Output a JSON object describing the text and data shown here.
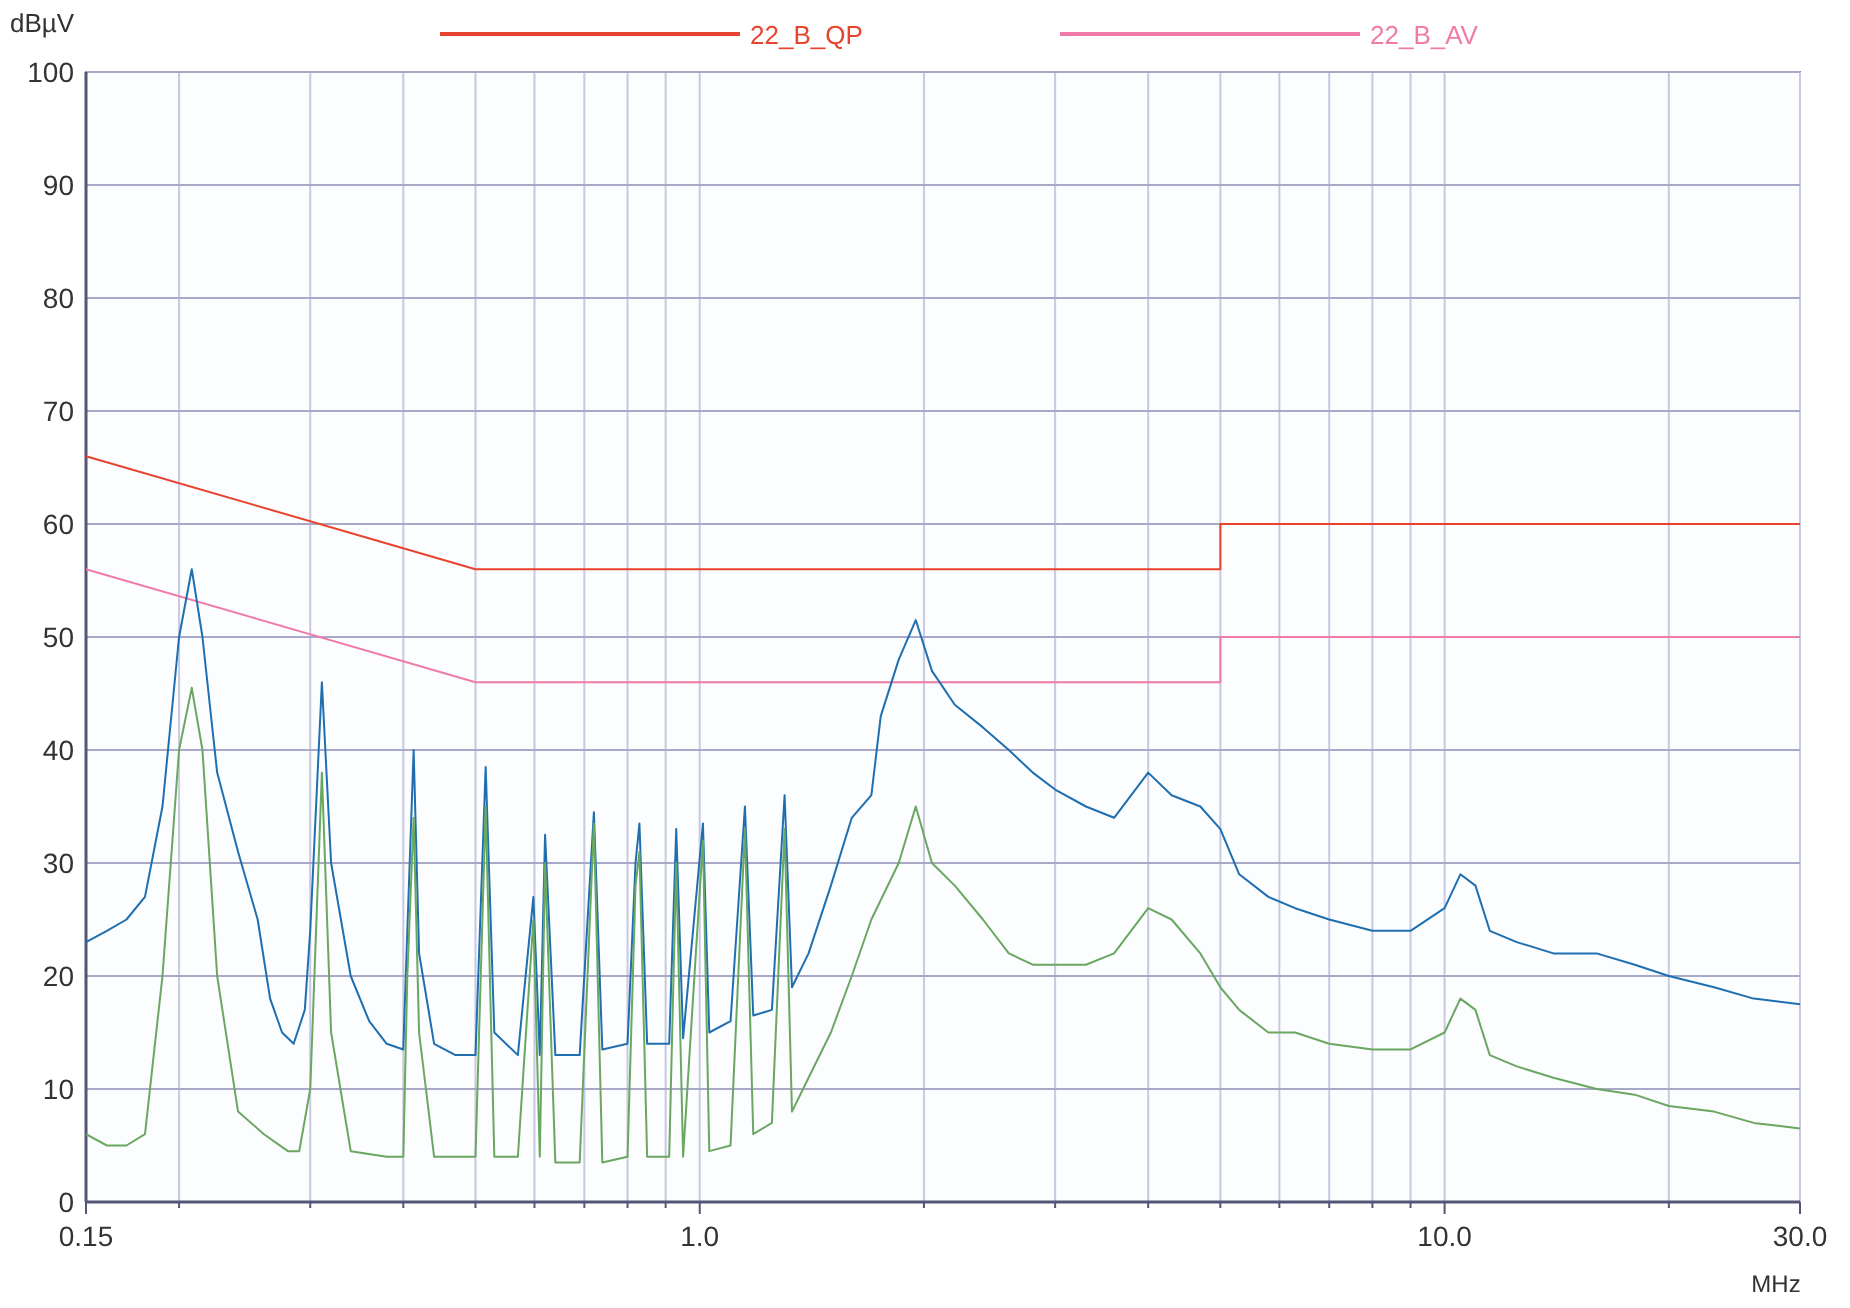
{
  "chart_data": {
    "type": "line",
    "xlabel": "MHz",
    "ylabel": "dBµV",
    "log": "x",
    "xlim": [
      0.15,
      30
    ],
    "ylim": [
      0,
      100
    ],
    "xticks": [
      {
        "value": 0.15,
        "label": "0.15"
      },
      {
        "value": 0.2,
        "label": null
      },
      {
        "value": 0.3,
        "label": null
      },
      {
        "value": 0.4,
        "label": null
      },
      {
        "value": 0.5,
        "label": null
      },
      {
        "value": 0.6,
        "label": null
      },
      {
        "value": 0.7,
        "label": null
      },
      {
        "value": 0.8,
        "label": null
      },
      {
        "value": 0.9,
        "label": null
      },
      {
        "value": 1,
        "label": "1.0"
      },
      {
        "value": 2,
        "label": null
      },
      {
        "value": 3,
        "label": null
      },
      {
        "value": 4,
        "label": null
      },
      {
        "value": 5,
        "label": null
      },
      {
        "value": 6,
        "label": null
      },
      {
        "value": 7,
        "label": null
      },
      {
        "value": 8,
        "label": null
      },
      {
        "value": 9,
        "label": null
      },
      {
        "value": 10,
        "label": "10.0"
      },
      {
        "value": 20,
        "label": null
      },
      {
        "value": 30,
        "label": "30.0"
      }
    ],
    "yticks": [
      0,
      10,
      20,
      30,
      40,
      50,
      60,
      70,
      80,
      90,
      100
    ],
    "grid": true,
    "legend": "top",
    "line_style": "solid",
    "marker": "none",
    "series": [
      {
        "name": "22_B_QP",
        "color": "#e8432e",
        "x": [
          0.15,
          0.5,
          5,
          5,
          30
        ],
        "values": [
          66,
          56,
          56,
          60,
          60
        ]
      },
      {
        "name": "22_B_AV",
        "color": "#f07aa8",
        "x": [
          0.15,
          0.5,
          5,
          5,
          30
        ],
        "values": [
          56,
          46,
          46,
          50,
          50
        ]
      },
      {
        "color": "#1f6fb0",
        "x": [
          0.15,
          0.16,
          0.17,
          0.18,
          0.19,
          0.2,
          0.208,
          0.215,
          0.225,
          0.24,
          0.255,
          0.265,
          0.275,
          0.285,
          0.295,
          0.3,
          0.311,
          0.32,
          0.34,
          0.36,
          0.38,
          0.4,
          0.405,
          0.413,
          0.42,
          0.44,
          0.47,
          0.5,
          0.516,
          0.53,
          0.57,
          0.598,
          0.61,
          0.62,
          0.64,
          0.69,
          0.721,
          0.74,
          0.8,
          0.82,
          0.83,
          0.85,
          0.91,
          0.93,
          0.95,
          1.01,
          1.03,
          1.1,
          1.15,
          1.18,
          1.25,
          1.3,
          1.33,
          1.4,
          1.5,
          1.6,
          1.7,
          1.75,
          1.85,
          1.95,
          2.05,
          2.2,
          2.4,
          2.6,
          2.8,
          3,
          3.3,
          3.6,
          4,
          4.3,
          4.7,
          5,
          5.3,
          5.8,
          6.3,
          7,
          8,
          9,
          10,
          10.5,
          11,
          11.5,
          12.5,
          14,
          16,
          18,
          20,
          23,
          26,
          30
        ],
        "values": [
          23,
          24,
          25,
          27,
          35,
          50,
          56,
          50,
          38,
          31,
          25,
          18,
          15,
          14,
          17,
          24,
          46,
          30,
          20,
          16,
          14,
          13.5,
          24,
          40,
          22,
          14,
          13,
          13,
          38.5,
          15,
          13,
          27,
          13,
          32.5,
          13,
          13,
          34.5,
          13.5,
          14,
          30,
          33.5,
          14,
          14,
          33,
          14.5,
          33.5,
          15,
          16,
          35,
          16.5,
          17,
          36,
          19,
          22,
          28,
          34,
          36,
          43,
          48,
          51.5,
          47,
          44,
          42,
          40,
          38,
          36.5,
          35,
          34,
          38,
          36,
          35,
          33,
          29,
          27,
          26,
          25,
          24,
          24,
          26,
          29,
          28,
          24,
          23,
          22,
          22,
          21,
          20,
          19,
          18,
          17.5
        ]
      },
      {
        "color": "#6aa760",
        "x": [
          0.15,
          0.16,
          0.17,
          0.18,
          0.19,
          0.2,
          0.208,
          0.215,
          0.225,
          0.24,
          0.26,
          0.28,
          0.29,
          0.3,
          0.311,
          0.32,
          0.34,
          0.38,
          0.4,
          0.405,
          0.413,
          0.42,
          0.44,
          0.5,
          0.516,
          0.53,
          0.57,
          0.598,
          0.61,
          0.62,
          0.64,
          0.69,
          0.721,
          0.74,
          0.8,
          0.82,
          0.83,
          0.85,
          0.91,
          0.93,
          0.95,
          1.01,
          1.03,
          1.1,
          1.15,
          1.18,
          1.25,
          1.3,
          1.33,
          1.4,
          1.5,
          1.6,
          1.7,
          1.85,
          1.95,
          2.05,
          2.2,
          2.4,
          2.6,
          2.8,
          3,
          3.3,
          3.6,
          4,
          4.3,
          4.7,
          5,
          5.3,
          5.8,
          6.3,
          7,
          8,
          9,
          10,
          10.5,
          11,
          11.5,
          12.5,
          14,
          16,
          18,
          20,
          23,
          26,
          30
        ],
        "values": [
          6,
          5,
          5,
          6,
          20,
          40,
          45.5,
          40,
          20,
          8,
          6,
          4.5,
          4.5,
          10,
          38,
          15,
          4.5,
          4,
          4,
          20,
          34,
          15,
          4,
          4,
          35,
          4,
          4,
          25,
          4,
          30,
          3.5,
          3.5,
          33.5,
          3.5,
          4,
          28,
          31,
          4,
          4,
          30,
          4,
          32,
          4.5,
          5,
          33,
          6,
          7,
          33,
          8,
          11,
          15,
          20,
          25,
          30,
          35,
          30,
          28,
          25,
          22,
          21,
          21,
          21,
          22,
          26,
          25,
          22,
          19,
          17,
          15,
          15,
          14,
          13.5,
          13.5,
          15,
          18,
          17,
          13,
          12,
          11,
          10,
          9.5,
          8.5,
          8,
          7,
          6.5
        ]
      }
    ]
  }
}
